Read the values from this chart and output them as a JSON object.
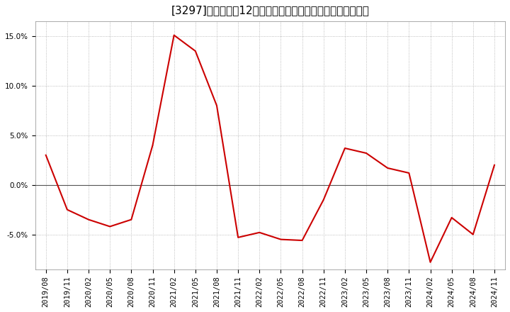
{
  "title": "[3297]　売上高の12か月移動合計の対前年同期増減率の推移",
  "line_color": "#cc0000",
  "background_color": "#ffffff",
  "plot_background_color": "#ffffff",
  "grid_color": "#aaaaaa",
  "dates": [
    "2019/08",
    "2019/11",
    "2020/02",
    "2020/05",
    "2020/08",
    "2020/11",
    "2021/02",
    "2021/05",
    "2021/08",
    "2021/11",
    "2022/02",
    "2022/05",
    "2022/08",
    "2022/11",
    "2023/02",
    "2023/05",
    "2023/08",
    "2023/11",
    "2024/02",
    "2024/05",
    "2024/08",
    "2024/11"
  ],
  "values": [
    3.0,
    -2.5,
    -3.5,
    -4.2,
    -3.5,
    4.0,
    15.1,
    13.5,
    8.0,
    -5.3,
    -4.8,
    -5.5,
    -5.6,
    -1.5,
    3.7,
    3.2,
    1.7,
    1.2,
    -7.8,
    -3.3,
    -5.0,
    2.0
  ],
  "yticks": [
    -5.0,
    0.0,
    5.0,
    10.0,
    15.0
  ],
  "ylim": [
    -8.5,
    16.5
  ],
  "zero_line_color": "#555555",
  "line_width": 1.5,
  "title_fontsize": 11,
  "tick_fontsize": 7.5
}
